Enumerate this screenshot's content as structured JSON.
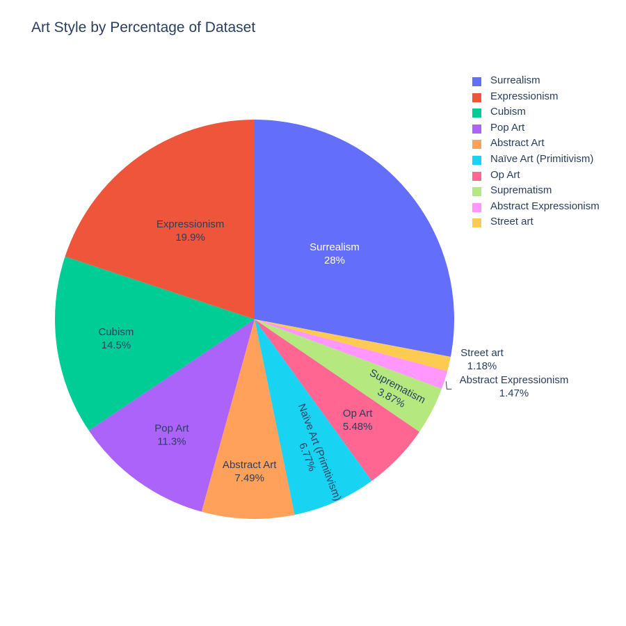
{
  "chart_data": {
    "type": "pie",
    "title": "Art Style by Percentage of Dataset",
    "direction": "clockwise",
    "start": "12 o'clock",
    "slices": [
      {
        "label": "Surrealism",
        "value": 28.0,
        "pct_label": "28%",
        "color": "#636efa",
        "text_color": "#ffffff"
      },
      {
        "label": "Street art",
        "value": 1.18,
        "pct_label": "1.18%",
        "color": "#fecb52",
        "text_color": "#2a3f5f"
      },
      {
        "label": "Abstract Expressionism",
        "value": 1.47,
        "pct_label": "1.47%",
        "color": "#ff97ff",
        "text_color": "#2a3f5f"
      },
      {
        "label": "Suprematism",
        "value": 3.87,
        "pct_label": "3.87%",
        "color": "#b6e880",
        "text_color": "#2a3f5f"
      },
      {
        "label": "Op Art",
        "value": 5.48,
        "pct_label": "5.48%",
        "color": "#ff6692",
        "text_color": "#2a3f5f"
      },
      {
        "label": "Naïve Art (Primitivism)",
        "value": 6.77,
        "pct_label": "6.77%",
        "color": "#19d3f3",
        "text_color": "#2a3f5f"
      },
      {
        "label": "Abstract Art",
        "value": 7.49,
        "pct_label": "7.49%",
        "color": "#ffa15a",
        "text_color": "#2a3f5f"
      },
      {
        "label": "Pop Art",
        "value": 11.3,
        "pct_label": "11.3%",
        "color": "#ab63fa",
        "text_color": "#2a3f5f"
      },
      {
        "label": "Cubism",
        "value": 14.5,
        "pct_label": "14.5%",
        "color": "#00cc96",
        "text_color": "#2a3f5f"
      },
      {
        "label": "Expressionism",
        "value": 19.9,
        "pct_label": "19.9%",
        "color": "#ef553b",
        "text_color": "#2a3f5f"
      }
    ],
    "legend": {
      "placement": "top-right",
      "entries": [
        {
          "label": "Surrealism",
          "color": "#636efa"
        },
        {
          "label": "Expressionism",
          "color": "#ef553b"
        },
        {
          "label": "Cubism",
          "color": "#00cc96"
        },
        {
          "label": "Pop Art",
          "color": "#ab63fa"
        },
        {
          "label": "Abstract Art",
          "color": "#ffa15a"
        },
        {
          "label": "Naïve Art (Primitivism)",
          "color": "#19d3f3"
        },
        {
          "label": "Op Art",
          "color": "#ff6692"
        },
        {
          "label": "Suprematism",
          "color": "#b6e880"
        },
        {
          "label": "Abstract Expressionism",
          "color": "#ff97ff"
        },
        {
          "label": "Street art",
          "color": "#fecb52"
        }
      ]
    }
  }
}
